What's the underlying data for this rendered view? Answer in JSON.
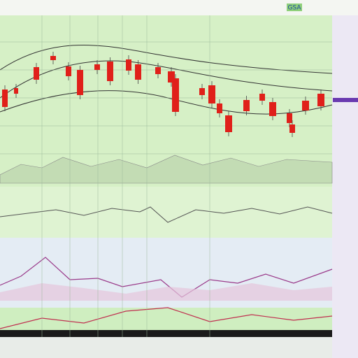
{
  "toolbar": {
    "badge": "GSA"
  }
}
